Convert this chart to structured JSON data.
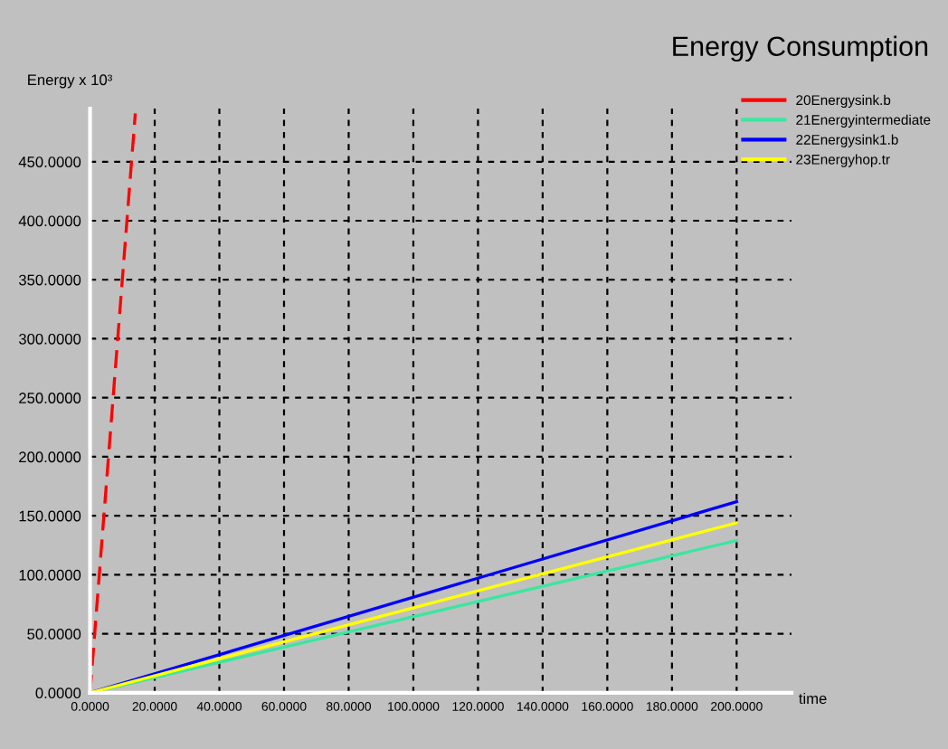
{
  "chart_data": {
    "type": "line",
    "title": "Energy Consumption",
    "xlabel": "time",
    "ylabel": "Energy x 10³",
    "series": [
      {
        "name": "20Energysink.b",
        "color": "#ff0000",
        "x": [
          0,
          14
        ],
        "values": [
          0,
          491
        ],
        "line_style": "dashed"
      },
      {
        "name": "21Energyintermediate",
        "color": "#3ce6a0",
        "x": [
          0,
          200
        ],
        "values": [
          0,
          129
        ]
      },
      {
        "name": "22Energysink1.b",
        "color": "#0000ff",
        "x": [
          0,
          200
        ],
        "values": [
          0,
          162
        ]
      },
      {
        "name": "23Energyhop.tr",
        "color": "#ffff00",
        "x": [
          0,
          200
        ],
        "values": [
          0,
          144
        ]
      }
    ],
    "xlim": [
      0,
      217
    ],
    "ylim": [
      0,
      495
    ],
    "xticks": [
      {
        "value": 0,
        "label": "0.0000"
      },
      {
        "value": 20,
        "label": "20.0000"
      },
      {
        "value": 40,
        "label": "40.0000"
      },
      {
        "value": 60,
        "label": "60.0000"
      },
      {
        "value": 80,
        "label": "80.0000"
      },
      {
        "value": 100,
        "label": "100.0000"
      },
      {
        "value": 120,
        "label": "120.0000"
      },
      {
        "value": 140,
        "label": "140.0000"
      },
      {
        "value": 160,
        "label": "160.0000"
      },
      {
        "value": 180,
        "label": "180.0000"
      },
      {
        "value": 200,
        "label": "200.0000"
      }
    ],
    "yticks": [
      {
        "value": 0,
        "label": "0.0000"
      },
      {
        "value": 50,
        "label": "50.0000"
      },
      {
        "value": 100,
        "label": "100.0000"
      },
      {
        "value": 150,
        "label": "150.0000"
      },
      {
        "value": 200,
        "label": "200.0000"
      },
      {
        "value": 250,
        "label": "250.0000"
      },
      {
        "value": 300,
        "label": "300.0000"
      },
      {
        "value": 350,
        "label": "350.0000"
      },
      {
        "value": 400,
        "label": "400.0000"
      },
      {
        "value": 450,
        "label": "450.0000"
      }
    ],
    "grid": true,
    "legend": "top right"
  }
}
